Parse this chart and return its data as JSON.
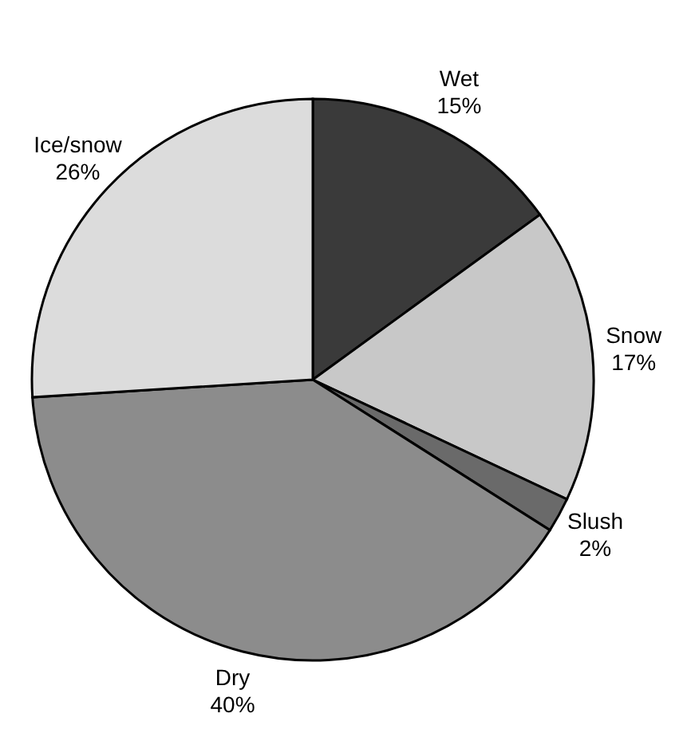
{
  "chart_data": {
    "type": "pie",
    "categories": [
      "Wet",
      "Snow",
      "Slush",
      "Dry",
      "Ice/snow"
    ],
    "values": [
      15,
      17,
      2,
      40,
      26
    ],
    "value_labels": [
      "15%",
      "17%",
      "2%",
      "40%",
      "26%"
    ],
    "colors": [
      "#3a3a3a",
      "#c8c8c8",
      "#6a6a6a",
      "#8c8c8c",
      "#dcdcdc"
    ]
  }
}
